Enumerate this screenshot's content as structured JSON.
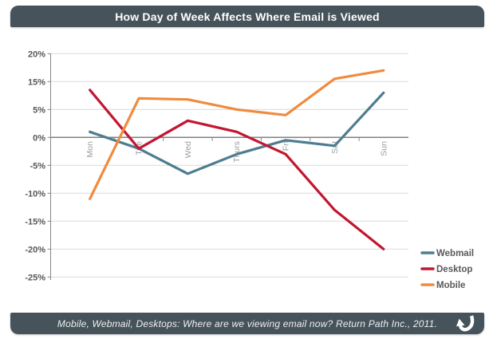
{
  "header": {
    "title": "How Day of Week Affects Where Email is Viewed"
  },
  "footer": {
    "caption": "Mobile, Webmail, Desktops: Where are we viewing email now? Return Path Inc., 2011.",
    "logo_icon": "return-curved-arrow-icon"
  },
  "colors": {
    "bar_background": "#46535b",
    "webmail": "#4E7D90",
    "desktop": "#C11731",
    "mobile": "#F08B3E",
    "gridline": "#D8DADB",
    "axis": "#85878A",
    "tick_label": "#58595B",
    "day_label": "#9B9DA0"
  },
  "chart_data": {
    "type": "line",
    "categories": [
      "Mon",
      "Tue",
      "Wed",
      "Thurs",
      "Fri",
      "Sat",
      "Sun"
    ],
    "series": [
      {
        "name": "Webmail",
        "color": "#4E7D90",
        "values": [
          1,
          -2,
          -6.5,
          -3,
          -0.5,
          -1.5,
          8
        ]
      },
      {
        "name": "Desktop",
        "color": "#C11731",
        "values": [
          8.5,
          -2,
          3,
          1,
          -3,
          -13,
          -20
        ]
      },
      {
        "name": "Mobile",
        "color": "#F08B3E",
        "values": [
          -11,
          7,
          6.8,
          5,
          4,
          10.5,
          12
        ]
      }
    ],
    "y_ticks": [
      "20%",
      "15%",
      "5%",
      "0%",
      "-5%",
      "-10%",
      "-15%",
      "-20%",
      "-25%"
    ],
    "y_unit_percent_per_gridline": 5,
    "xlabel": "",
    "ylabel": "",
    "grid": true,
    "legend_position": "bottom-right"
  }
}
